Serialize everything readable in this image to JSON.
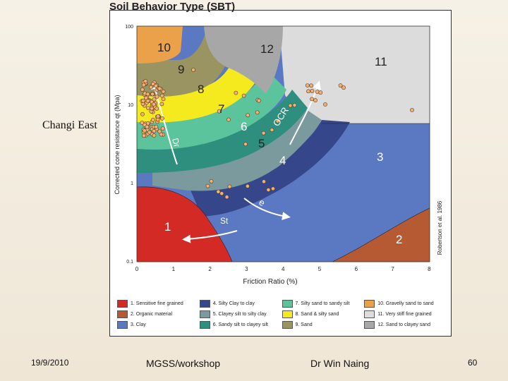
{
  "side_label": "Changi East",
  "figure": {
    "title": "Soil Behavior Type (SBT)",
    "xlabel": "Friction Ratio (%)",
    "ylabel": "Corrected cone resistance qt (Mpa)",
    "credit": "Robertson et al. 1986",
    "x_ticks": [
      "0",
      "1",
      "2",
      "3",
      "4",
      "5",
      "6",
      "7",
      "8"
    ],
    "y_ticks": [
      "100",
      "10",
      "1",
      "0.1"
    ],
    "zones": [
      {
        "num": "1",
        "label": "1. Sensitive fine grained",
        "color": "#d42a26"
      },
      {
        "num": "2",
        "label": "2. Organic material",
        "color": "#b55a32"
      },
      {
        "num": "3",
        "label": "3. Clay",
        "color": "#5b78c2"
      },
      {
        "num": "4",
        "label": "4. Silty Clay to clay",
        "color": "#35468a"
      },
      {
        "num": "5",
        "label": "5. Clayey silt to silty clay",
        "color": "#7a9a9e"
      },
      {
        "num": "6",
        "label": "6. Sandy silt to clayey silt",
        "color": "#2f8f7e"
      },
      {
        "num": "7",
        "label": "7. Silty sand to sandy silt",
        "color": "#5cc49c"
      },
      {
        "num": "8",
        "label": "8. Sand & silty sand",
        "color": "#f5ea1e"
      },
      {
        "num": "9",
        "label": "9. Sand",
        "color": "#9a9462"
      },
      {
        "num": "10",
        "label": "10. Gravelly sand to sand",
        "color": "#eba04a"
      },
      {
        "num": "11",
        "label": "11. Very stiff fine grained",
        "color": "#dcdcdc"
      },
      {
        "num": "12",
        "label": "12. Sand to clayey sand",
        "color": "#a7a7a7"
      }
    ],
    "trend_labels": {
      "ocr": "OCR",
      "dr": "Dr",
      "e": "e",
      "st": "St"
    }
  },
  "footer": {
    "date": "19/9/2010",
    "event": "MGSS/workshop",
    "author": "Dr Win Naing",
    "page": "60"
  }
}
